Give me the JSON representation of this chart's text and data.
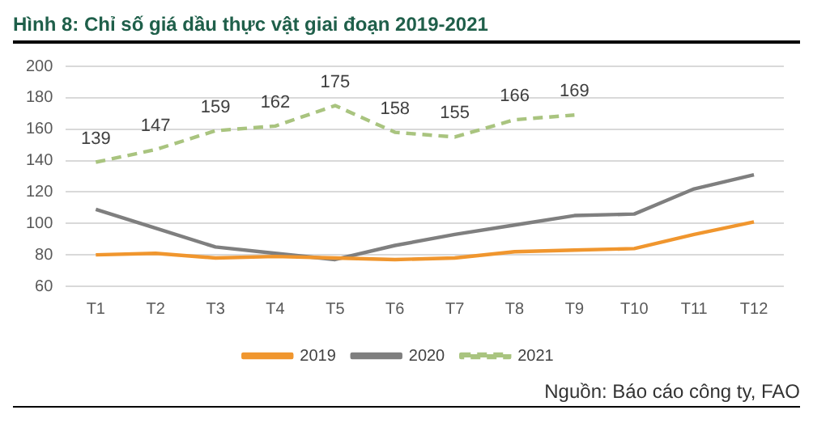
{
  "chart_data": {
    "type": "line",
    "title": "Hình 8: Chỉ số giá dầu thực vật giai đoạn 2019-2021",
    "categories": [
      "T1",
      "T2",
      "T3",
      "T4",
      "T5",
      "T6",
      "T7",
      "T8",
      "T9",
      "T10",
      "T11",
      "T12"
    ],
    "series": [
      {
        "name": "2019",
        "color": "#f0962e",
        "line_style": "solid",
        "values": [
          80,
          81,
          78,
          79,
          78,
          77,
          78,
          82,
          83,
          84,
          93,
          101
        ]
      },
      {
        "name": "2020",
        "color": "#7f7f7f",
        "line_style": "solid",
        "values": [
          109,
          97,
          85,
          81,
          77,
          86,
          93,
          99,
          105,
          106,
          122,
          131
        ]
      },
      {
        "name": "2021",
        "color": "#a9c47f",
        "line_style": "dashed",
        "values": [
          139,
          147,
          159,
          162,
          175,
          158,
          155,
          166,
          169,
          null,
          null,
          null
        ],
        "value_labels": [
          "139",
          "147",
          "159",
          "162",
          "175",
          "158",
          "155",
          "166",
          "169",
          null,
          null,
          null
        ]
      }
    ],
    "ylim": [
      60,
      200
    ],
    "yticks": [
      60,
      80,
      100,
      120,
      140,
      160,
      180,
      200
    ],
    "grid": "y",
    "legend": "bottom",
    "marker": "none",
    "annotations": [
      "Nguồn: Báo cáo công ty, FAO"
    ]
  }
}
